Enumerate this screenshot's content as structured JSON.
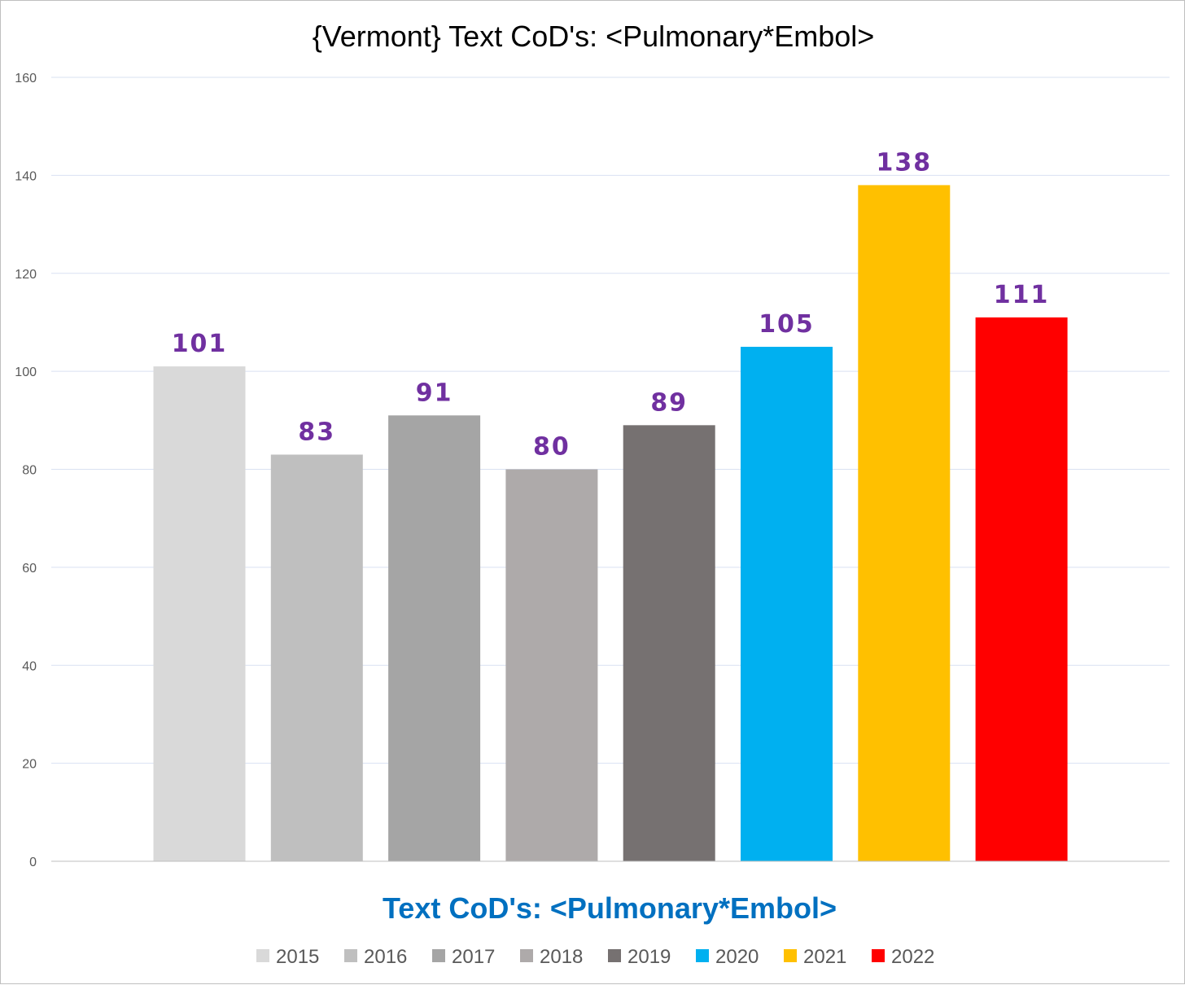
{
  "chart_data": {
    "type": "bar",
    "title": "{Vermont}  Text CoD's: <Pulmonary*Embol>",
    "xlabel": "Text CoD's: <Pulmonary*Embol>",
    "ylabel": "",
    "ylim": [
      0,
      160
    ],
    "yticks": [
      "0",
      "20",
      "40",
      "60",
      "80",
      "100",
      "120",
      "140",
      "160"
    ],
    "grid": true,
    "legend_position": "bottom",
    "data_label_color": "#7030a0",
    "series": [
      {
        "name": "2015",
        "values": [
          101
        ],
        "color": "#d9d9d9"
      },
      {
        "name": "2016",
        "values": [
          83
        ],
        "color": "#bfbfbf"
      },
      {
        "name": "2017",
        "values": [
          91
        ],
        "color": "#a5a5a5"
      },
      {
        "name": "2018",
        "values": [
          80
        ],
        "color": "#aeaaaa"
      },
      {
        "name": "2019",
        "values": [
          89
        ],
        "color": "#767171"
      },
      {
        "name": "2020",
        "values": [
          105
        ],
        "color": "#00b0f0"
      },
      {
        "name": "2021",
        "values": [
          138
        ],
        "color": "#ffc000"
      },
      {
        "name": "2022",
        "values": [
          111
        ],
        "color": "#ff0000"
      }
    ]
  }
}
